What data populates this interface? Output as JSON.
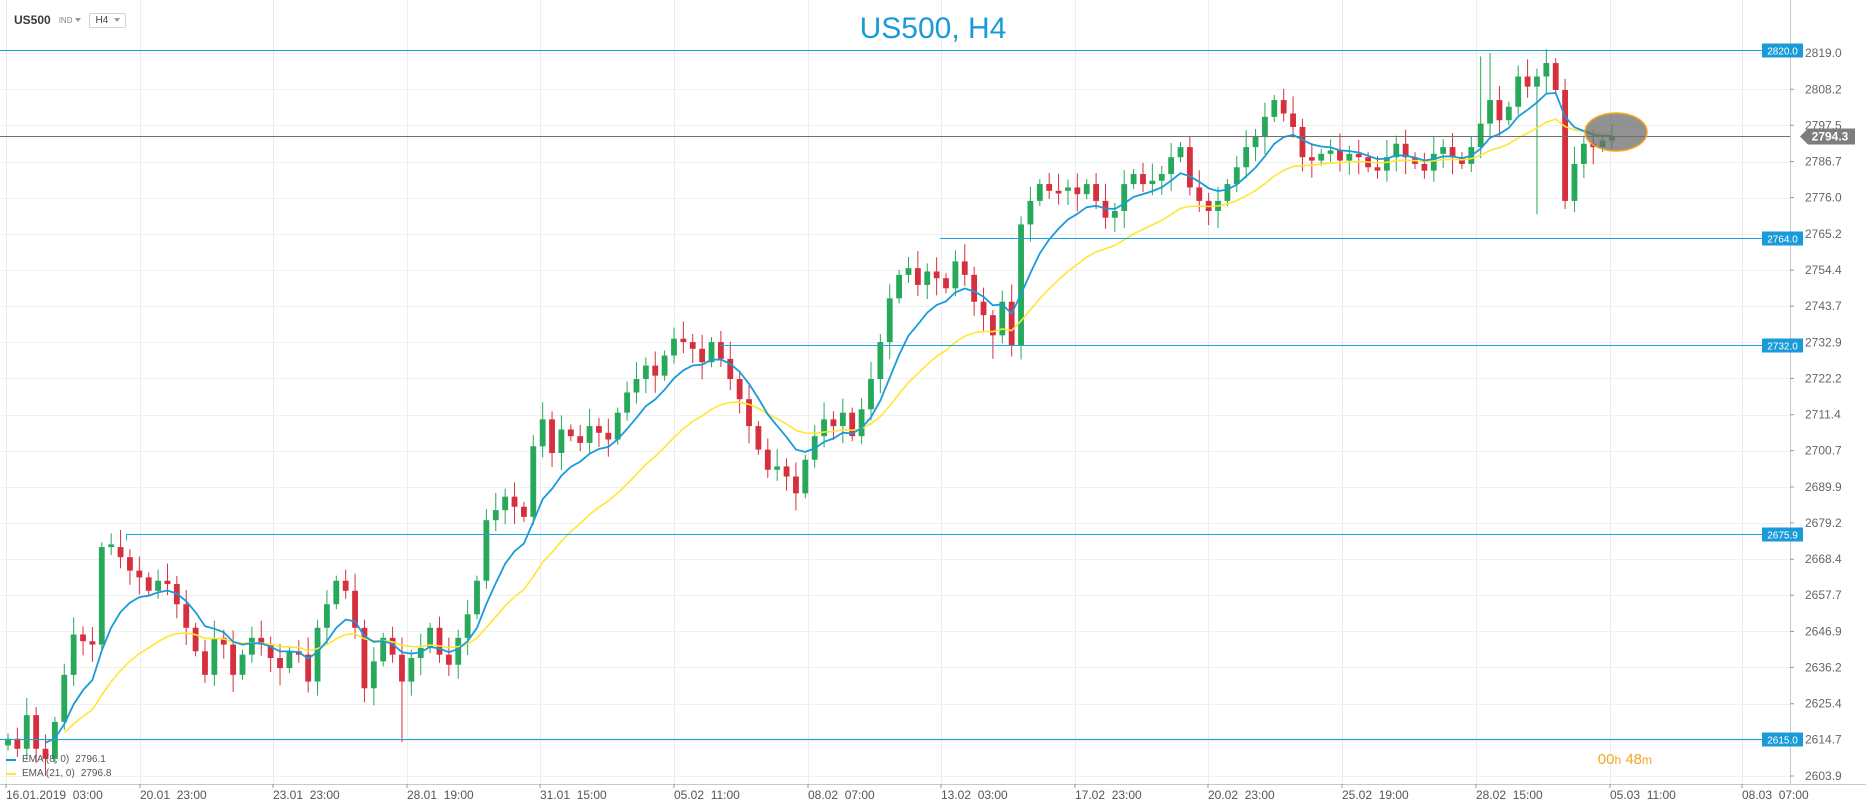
{
  "toolbar": {
    "symbol": "US500",
    "type": "IND",
    "timeframe": "H4"
  },
  "title": "US500, H4",
  "timer": {
    "hours": "00",
    "h": "h",
    "minutes": "48",
    "m": "m"
  },
  "legend": [
    {
      "label": "EMA (8, 0)",
      "value": "2796.1",
      "color": "#1a9bd9"
    },
    {
      "label": "EMA (21, 0)",
      "value": "2796.8",
      "color": "#ffe635"
    }
  ],
  "colors": {
    "up": "#27a85a",
    "down": "#d62f3e",
    "fast_ema": "#1a9bd9",
    "slow_ema": "#ffe635",
    "level": "#1aa3e0",
    "last": "#707070"
  },
  "chart_data": {
    "type": "candlestick",
    "title": "US500, H4",
    "ylim": [
      2602,
      2826
    ],
    "y_ticks": [
      "2819.0",
      "2808.2",
      "2797.5",
      "2786.7",
      "2776.0",
      "2765.2",
      "2754.4",
      "2743.7",
      "2732.9",
      "2722.2",
      "2711.4",
      "2700.7",
      "2689.9",
      "2679.2",
      "2668.4",
      "2657.7",
      "2646.9",
      "2636.2",
      "2625.4",
      "2614.7",
      "2603.9"
    ],
    "x_ticks": [
      "16.01.2019  03:00",
      "20.01  23:00",
      "23.01  23:00",
      "28.01  19:00",
      "31.01  15:00",
      "05.02  11:00",
      "08.02  07:00",
      "13.02  03:00",
      "17.02  23:00",
      "20.02  23:00",
      "25.02  19:00",
      "28.02  15:00",
      "05.03  11:00",
      "08.03  07:00"
    ],
    "levels": [
      "2820.0",
      "2764.0",
      "2732.0",
      "2675.9",
      "2615.0"
    ],
    "last_price": "2794.3",
    "close": [
      2615,
      2612,
      2622,
      2612,
      2609,
      2620,
      2634,
      2646,
      2644,
      2643,
      2672,
      2672,
      2669,
      2665,
      2663,
      2659,
      2662,
      2661,
      2655,
      2648,
      2641,
      2634,
      2645,
      2643,
      2634,
      2640,
      2645,
      2643,
      2639,
      2636,
      2641,
      2640,
      2632,
      2648,
      2655,
      2662,
      2659,
      2648,
      2630,
      2638,
      2645,
      2640,
      2632,
      2639,
      2642,
      2648,
      2640,
      2637,
      2645,
      2652,
      2662,
      2680,
      2683,
      2687,
      2684,
      2681,
      2702,
      2710,
      2700,
      2707,
      2705,
      2703,
      2708,
      2706,
      2704,
      2712,
      2718,
      2722,
      2726,
      2723,
      2729,
      2734,
      2733,
      2731,
      2727,
      2733,
      2728,
      2722,
      2716,
      2708,
      2701,
      2695,
      2696,
      2693,
      2688,
      2698,
      2705,
      2710,
      2708,
      2712,
      2705,
      2713,
      2722,
      2733,
      2746,
      2753,
      2755,
      2750,
      2754,
      2752,
      2749,
      2757,
      2753,
      2745,
      2741,
      2735,
      2745,
      2732,
      2768,
      2775,
      2780,
      2778,
      2778,
      2779,
      2777,
      2780,
      2775,
      2770,
      2772,
      2780,
      2783,
      2780,
      2781,
      2783,
      2788,
      2791,
      2779,
      2775,
      2772,
      2775,
      2780,
      2785,
      2791,
      2794,
      2800,
      2805,
      2801,
      2797,
      2788,
      2787,
      2789,
      2790,
      2787,
      2789,
      2788,
      2785,
      2784,
      2788,
      2792,
      2788,
      2786,
      2784,
      2789,
      2791,
      2788,
      2786,
      2791,
      2798,
      2805,
      2799,
      2803,
      2812,
      2809,
      2812,
      2816,
      2808,
      2775,
      2786,
      2792,
      2791,
      2793,
      2794.3
    ]
  }
}
